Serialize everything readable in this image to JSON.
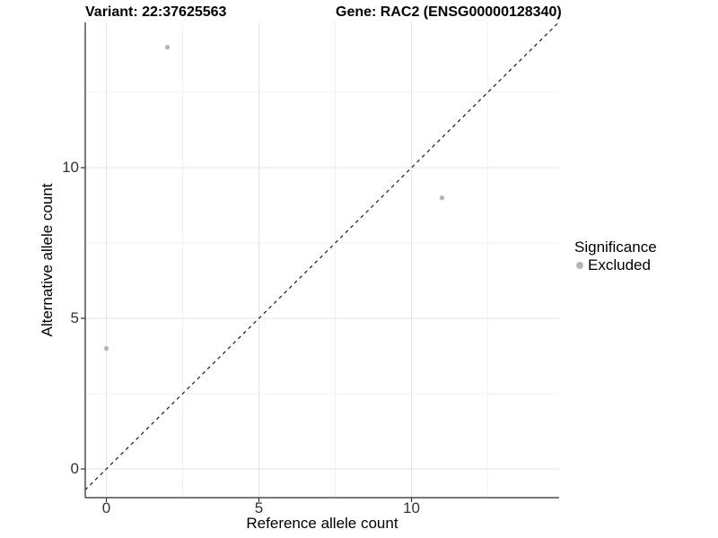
{
  "titles": {
    "variant": "Variant: 22:37625563",
    "gene": "Gene: RAC2 (ENSG00000128340)"
  },
  "legend": {
    "title": "Significance",
    "items": [
      {
        "label": "Excluded",
        "color": "#b5b5b5"
      }
    ]
  },
  "colors": {
    "grid_major": "#e5e5e5",
    "grid_minor": "#f2f2f2",
    "axis_line": "#4d4d4d",
    "tick_mark": "#333333",
    "reference_line": "#1a1a1a",
    "point": "#b5b5b5"
  },
  "chart_data": {
    "type": "scatter",
    "title_left": "Variant: 22:37625563",
    "title_right": "Gene: RAC2 (ENSG00000128340)",
    "xlabel": "Reference allele count",
    "ylabel": "Alternative allele count",
    "x_ticks": [
      0,
      5,
      10
    ],
    "y_ticks": [
      0,
      5,
      10
    ],
    "xlim": [
      -0.7,
      14.8
    ],
    "ylim": [
      -0.95,
      14.8
    ],
    "grid": "major gridlines at ticks plus minor gridlines at midpoints, light gray on white",
    "legend_position": "right",
    "legend_title": "Significance",
    "series": [
      {
        "name": "Excluded",
        "points": [
          {
            "x": 0,
            "y": 4
          },
          {
            "x": 2,
            "y": 14
          },
          {
            "x": 11,
            "y": 9
          }
        ]
      }
    ],
    "reference_line": {
      "type": "identity y = x",
      "style": "dashed",
      "color": "#1a1a1a"
    }
  }
}
